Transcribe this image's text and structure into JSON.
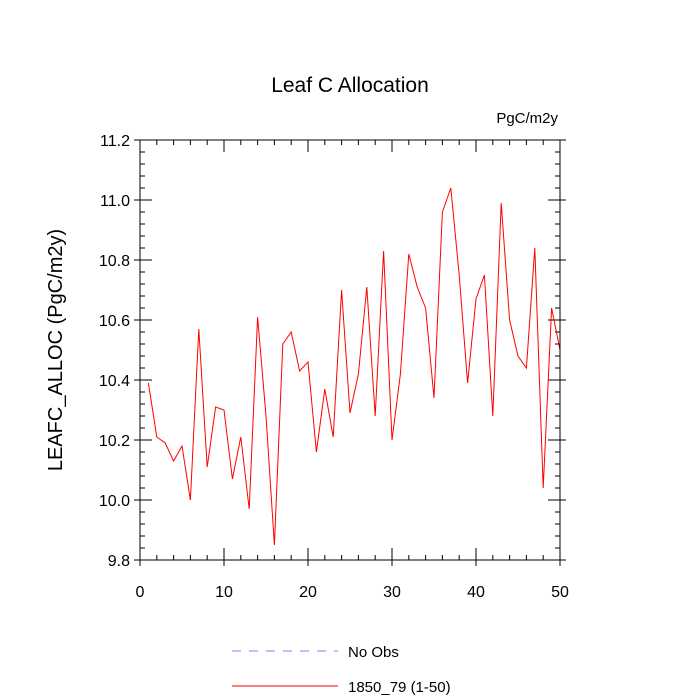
{
  "chart_data": {
    "type": "line",
    "title": "Leaf C Allocation",
    "units_label": "PgC/m2y",
    "ylabel": "LEAFC_ALLOC  (PgC/m2y)",
    "xlabel": "",
    "xlim": [
      0,
      50
    ],
    "ylim": [
      9.8,
      11.2
    ],
    "x_ticks": [
      0,
      10,
      20,
      30,
      40,
      50
    ],
    "x_tick_labels": [
      "0",
      "10",
      "20",
      "30",
      "40",
      "50"
    ],
    "y_ticks": [
      9.8,
      10.0,
      10.2,
      10.4,
      10.6,
      10.8,
      11.0,
      11.2
    ],
    "y_tick_labels": [
      "9.8",
      "10.0",
      "10.2",
      "10.4",
      "10.6",
      "10.8",
      "11.0",
      "11.2"
    ],
    "grid": false,
    "legend_position": "bottom-center",
    "legend": [
      {
        "label": "No Obs",
        "color": "#8080ff",
        "style": "dashed"
      },
      {
        "label": "1850_79 (1-50)",
        "color": "#ff0000",
        "style": "solid"
      }
    ],
    "series": [
      {
        "name": "1850_79 (1-50)",
        "color": "#ff0000",
        "x": [
          1,
          2,
          3,
          4,
          5,
          6,
          7,
          8,
          9,
          10,
          11,
          12,
          13,
          14,
          15,
          16,
          17,
          18,
          19,
          20,
          21,
          22,
          23,
          24,
          25,
          26,
          27,
          28,
          29,
          30,
          31,
          32,
          33,
          34,
          35,
          36,
          37,
          38,
          39,
          40,
          41,
          42,
          43,
          44,
          45,
          46,
          47,
          48,
          49,
          50
        ],
        "values": [
          10.39,
          10.21,
          10.19,
          10.13,
          10.18,
          10.0,
          10.57,
          10.11,
          10.31,
          10.3,
          10.07,
          10.21,
          9.97,
          10.61,
          10.28,
          9.85,
          10.52,
          10.56,
          10.43,
          10.46,
          10.16,
          10.37,
          10.21,
          10.7,
          10.29,
          10.42,
          10.71,
          10.28,
          10.83,
          10.2,
          10.42,
          10.82,
          10.71,
          10.64,
          10.34,
          10.96,
          11.04,
          10.75,
          10.39,
          10.67,
          10.75,
          10.28,
          10.99,
          10.6,
          10.48,
          10.44,
          10.84,
          10.04,
          10.64,
          10.5
        ]
      }
    ]
  }
}
